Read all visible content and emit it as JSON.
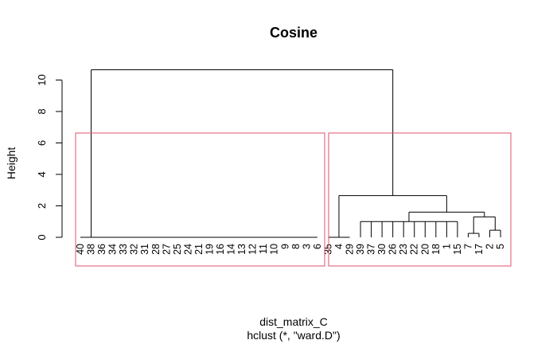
{
  "chart_data": {
    "type": "dendrogram",
    "title": "Cosine",
    "xlabel": "dist_matrix_C",
    "sub": "hclust (*, \"ward.D\")",
    "ylabel": "Height",
    "yticks": [
      0,
      2,
      4,
      6,
      8,
      10
    ],
    "ylim": [
      0,
      10.8
    ],
    "leaf_order": [
      "40",
      "38",
      "36",
      "34",
      "33",
      "32",
      "31",
      "28",
      "27",
      "25",
      "24",
      "21",
      "19",
      "16",
      "14",
      "13",
      "12",
      "11",
      "10",
      "9",
      "8",
      "3",
      "6",
      "35",
      "4",
      "29",
      "39",
      "37",
      "30",
      "26",
      "23",
      "22",
      "20",
      "18",
      "1",
      "15",
      "7",
      "17",
      "2",
      "5"
    ],
    "merges": [
      {
        "height": 10.65
      },
      {
        "height": 2.65
      },
      {
        "height": 1.6
      },
      {
        "height": 1.3
      },
      {
        "height": 1.0
      },
      {
        "height": 0.45
      },
      {
        "height": 0.25
      }
    ],
    "cluster_boxes": 2,
    "box_color": "#DF536B"
  }
}
